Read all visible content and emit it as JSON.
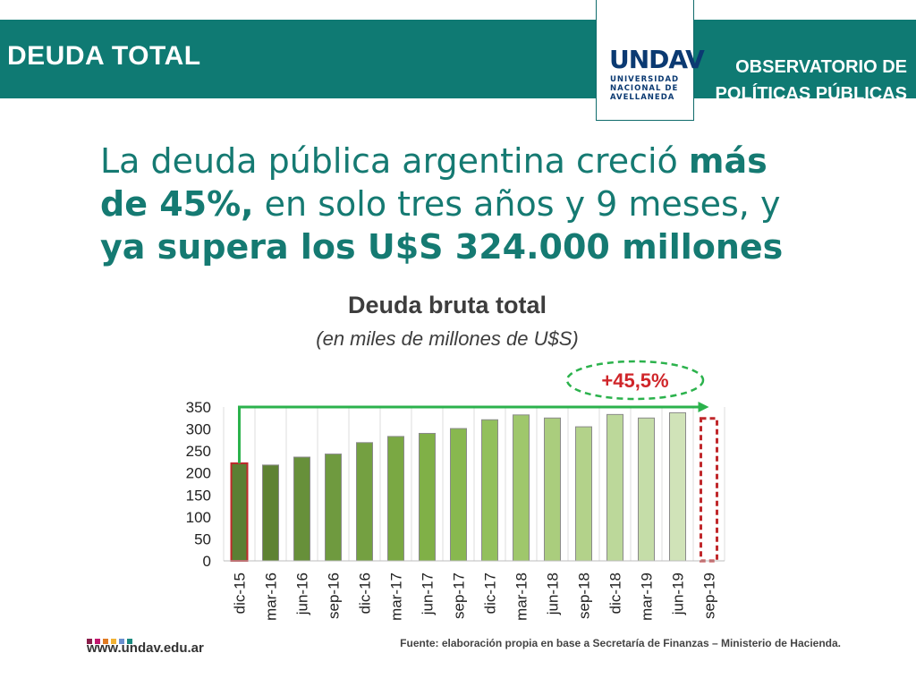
{
  "header": {
    "title": "DEUDA TOTAL",
    "observatory_line1": "OBSERVATORIO DE",
    "observatory_line2": "POLÍTICAS PÚBLICAS",
    "logo_mark": "UNDAV",
    "logo_line1": "UNIVERSIDAD",
    "logo_line2": "NACIONAL DE",
    "logo_line3": "AVELLANEDA"
  },
  "headline": {
    "part1": "La deuda pública argentina creció ",
    "bold1": "más de 45%,",
    "part2": " en solo tres años y 9 meses, y ",
    "bold2": "ya supera los U$S 324.000 millones"
  },
  "chart_data": {
    "type": "bar",
    "title": "Deuda bruta total",
    "subtitle": "(en miles de millones de U$S)",
    "categories": [
      "dic-15",
      "mar-16",
      "jun-16",
      "sep-16",
      "dic-16",
      "mar-17",
      "jun-17",
      "sep-17",
      "dic-17",
      "mar-18",
      "jun-18",
      "sep-18",
      "dic-18",
      "mar-19",
      "jun-19",
      "sep-19"
    ],
    "values": [
      222,
      218,
      236,
      243,
      269,
      283,
      290,
      301,
      321,
      332,
      325,
      305,
      333,
      325,
      337,
      324
    ],
    "bar_colors": [
      "#5b7f33",
      "#5e8233",
      "#67903a",
      "#6f9a3f",
      "#74a041",
      "#7aa843",
      "#80b047",
      "#88b84f",
      "#92c05c",
      "#9fc76c",
      "#aacd7d",
      "#b3d28a",
      "#bcd89a",
      "#c5dda8",
      "#d0e3b8",
      "#ffffff"
    ],
    "highlight_outline_color": "#c0282b",
    "arrow_color": "#2bb24c",
    "yticks": [
      0,
      50,
      100,
      150,
      200,
      250,
      300,
      350
    ],
    "ylim": [
      0,
      350
    ],
    "annotation": "+45,5%",
    "grid": "vertical",
    "xlabel": "",
    "ylabel": ""
  },
  "footer": {
    "website": "www.undav.edu.ar",
    "source": "Fuente: elaboración propia en base a Secretaría de Finanzas – Ministerio de Hacienda.",
    "dot_colors": [
      "#8a1e4b",
      "#c2186e",
      "#e07a22",
      "#f2b233",
      "#6a8fcf",
      "#1b8a7f"
    ]
  }
}
